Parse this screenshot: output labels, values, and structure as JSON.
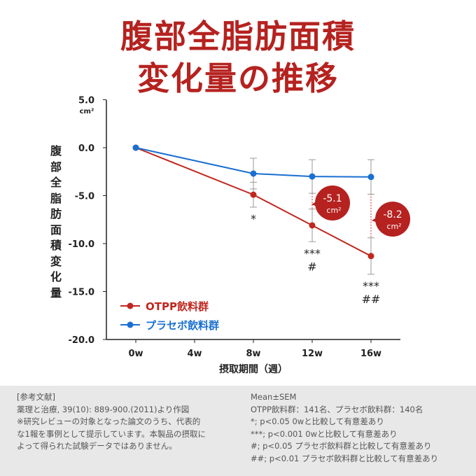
{
  "title": {
    "line1": "腹部全脂肪面積",
    "line2": "変化量の推移"
  },
  "chart_data": {
    "type": "line",
    "ylabel": "腹部全脂肪面積変化量",
    "yunit": "cm²",
    "xlabel": "摂取期間（週）",
    "categories": [
      "0w",
      "4w",
      "8w",
      "12w",
      "16w"
    ],
    "x": [
      0,
      4,
      8,
      12,
      16
    ],
    "ylim": [
      -20,
      5
    ],
    "yticks": [
      "5.0",
      "0.0",
      "-5.0",
      "-10.0",
      "-15.0",
      "-20.0"
    ],
    "legend_position": "bottom-left",
    "series": [
      {
        "name": "OTPP飲料群",
        "color": "#c0271f",
        "x": [
          0,
          8,
          12,
          16
        ],
        "values": [
          0,
          -4.9,
          -8.1,
          -11.3
        ],
        "sem": [
          0,
          1.3,
          1.7,
          1.9
        ],
        "labels": [
          "",
          "*",
          "***\n#",
          "***\n##"
        ]
      },
      {
        "name": "プラセボ飲料群",
        "color": "#1a6fd1",
        "x": [
          0,
          8,
          12,
          16
        ],
        "values": [
          0,
          -2.7,
          -3.0,
          -3.05
        ],
        "sem": [
          0,
          1.6,
          1.75,
          1.8
        ]
      }
    ],
    "annotations": [
      {
        "x": 12,
        "value": "-5.1",
        "unit": "cm²"
      },
      {
        "x": 16,
        "value": "-8.2",
        "unit": "cm²"
      }
    ]
  },
  "notes": {
    "left": [
      "[参考文献]",
      "薬理と治療, 39(10): 889-900.(2011)より作図",
      "※研究レビューの対象となった論文のうち、代表的",
      "な1報を事例として提示しています。本製品の摂取に",
      "よって得られた試験データではありません。"
    ],
    "right": [
      "Mean±SEM",
      "OTPP飲料群：141名、プラセボ飲料群：140名",
      "*; p<0.05 0wと比較して有意差あり",
      "***; p<0.001 0wと比較して有意差あり",
      "#; p<0.05 プラセボ飲料群と比較して有意差あり",
      "##; p<0.01 プラセボ飲料群と比較して有意差あり"
    ]
  }
}
